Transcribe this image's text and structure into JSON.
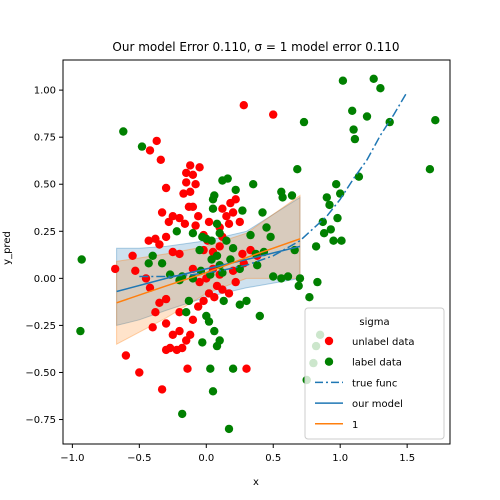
{
  "chart_data": {
    "type": "scatter",
    "title": "Our model Error 0.110, σ = 1 model error 0.110",
    "xlabel": "x",
    "ylabel": "y_pred",
    "xlim": [
      -1.07,
      1.82
    ],
    "ylim": [
      -0.88,
      1.16
    ],
    "xticks": [
      -1.0,
      -0.5,
      0.0,
      0.5,
      1.0,
      1.5
    ],
    "xtick_labels": [
      "−1.0",
      "−0.5",
      "0.0",
      "0.5",
      "1.0",
      "1.5"
    ],
    "yticks": [
      -0.75,
      -0.5,
      -0.25,
      0.0,
      0.25,
      0.5,
      0.75,
      1.0
    ],
    "ytick_labels": [
      "−0.75",
      "−0.50",
      "−0.25",
      "0.00",
      "0.25",
      "0.50",
      "0.75",
      "1.00"
    ],
    "grid": false,
    "legend": {
      "title": "sigma",
      "placement": "lower-right",
      "entries": [
        {
          "label": "unlabel data",
          "kind": "marker",
          "color": "#ff0000"
        },
        {
          "label": "label data",
          "kind": "marker",
          "color": "#008000"
        },
        {
          "label": "true func",
          "kind": "dashdot",
          "color": "#1f77b4"
        },
        {
          "label": "our model",
          "kind": "line",
          "color": "#1f77b4"
        },
        {
          "label": "1",
          "kind": "line",
          "color": "#ff7f0e"
        }
      ]
    },
    "series": [
      {
        "name": "unlabel data",
        "kind": "scatter",
        "color": "#ff0000",
        "points": [
          [
            -0.37,
            0.73
          ],
          [
            -0.42,
            0.68
          ],
          [
            -0.34,
            0.63
          ],
          [
            -0.3,
            0.48
          ],
          [
            -0.25,
            0.33
          ],
          [
            -0.33,
            0.35
          ],
          [
            -0.28,
            0.3
          ],
          [
            -0.38,
            0.21
          ],
          [
            -0.35,
            0.18
          ],
          [
            -0.43,
            0.2
          ],
          [
            -0.3,
            0.22
          ],
          [
            -0.15,
            0.56
          ],
          [
            -0.12,
            0.6
          ],
          [
            -0.1,
            0.55
          ],
          [
            -0.15,
            0.51
          ],
          [
            -0.05,
            0.59
          ],
          [
            -0.08,
            0.5
          ],
          [
            -0.17,
            0.45
          ],
          [
            -0.12,
            0.46
          ],
          [
            -0.13,
            0.38
          ],
          [
            -0.1,
            0.38
          ],
          [
            -0.2,
            0.32
          ],
          [
            -0.06,
            0.33
          ],
          [
            -0.16,
            0.29
          ],
          [
            -0.08,
            0.28
          ],
          [
            -0.02,
            0.23
          ],
          [
            0.02,
            0.3
          ],
          [
            0.01,
            0.2
          ],
          [
            -0.02,
            0.15
          ],
          [
            0.05,
            0.14
          ],
          [
            -0.25,
            0.14
          ],
          [
            -0.2,
            0.13
          ],
          [
            0.1,
            0.17
          ],
          [
            0.12,
            0.22
          ],
          [
            0.1,
            0.27
          ],
          [
            0.15,
            0.33
          ],
          [
            0.17,
            0.29
          ],
          [
            0.12,
            0.37
          ],
          [
            0.2,
            0.35
          ],
          [
            0.18,
            0.4
          ],
          [
            0.22,
            0.42
          ],
          [
            0.25,
            0.3
          ],
          [
            0.28,
            0.92
          ],
          [
            0.5,
            0.87
          ],
          [
            0.27,
            0.13
          ],
          [
            0.28,
            0.08
          ],
          [
            0.33,
            0.15
          ],
          [
            0.38,
            0.12
          ],
          [
            -0.55,
            0.12
          ],
          [
            -0.68,
            0.05
          ],
          [
            -0.53,
            0.04
          ],
          [
            -0.45,
            0.0
          ],
          [
            -0.42,
            -0.05
          ],
          [
            -0.35,
            -0.13
          ],
          [
            -0.3,
            -0.11
          ],
          [
            -0.38,
            -0.18
          ],
          [
            -0.4,
            -0.26
          ],
          [
            -0.3,
            -0.24
          ],
          [
            -0.2,
            -0.18
          ],
          [
            -0.25,
            -0.3
          ],
          [
            -0.2,
            -0.28
          ],
          [
            -0.27,
            -0.37
          ],
          [
            -0.3,
            -0.38
          ],
          [
            -0.22,
            -0.38
          ],
          [
            -0.18,
            -0.37
          ],
          [
            -0.12,
            -0.3
          ],
          [
            -0.15,
            -0.33
          ],
          [
            -0.14,
            -0.48
          ],
          [
            -0.1,
            -0.22
          ],
          [
            -0.06,
            -0.15
          ],
          [
            -0.02,
            -0.12
          ],
          [
            0.02,
            -0.08
          ],
          [
            0.06,
            -0.1
          ],
          [
            0.08,
            -0.04
          ],
          [
            0.1,
            0.02
          ],
          [
            0.05,
            0.05
          ],
          [
            -0.1,
            0.05
          ],
          [
            -0.05,
            -0.02
          ],
          [
            0.12,
            -0.06
          ],
          [
            0.17,
            -0.08
          ],
          [
            0.2,
            0.04
          ],
          [
            0.22,
            -0.02
          ],
          [
            -0.6,
            -0.41
          ],
          [
            -0.5,
            -0.5
          ],
          [
            -0.33,
            -0.59
          ],
          [
            0.3,
            -0.48
          ],
          [
            0.0,
            0.0
          ]
        ]
      },
      {
        "name": "label data",
        "kind": "scatter",
        "color": "#008000",
        "points": [
          [
            -0.93,
            0.1
          ],
          [
            -0.94,
            -0.28
          ],
          [
            -0.62,
            0.78
          ],
          [
            -0.48,
            0.7
          ],
          [
            -0.4,
            0.12
          ],
          [
            -0.33,
            0.08
          ],
          [
            -0.43,
            0.08
          ],
          [
            -0.22,
            0.25
          ],
          [
            -0.18,
            0.01
          ],
          [
            -0.1,
            0.24
          ],
          [
            0.05,
            0.37
          ],
          [
            0.05,
            0.42
          ],
          [
            0.06,
            0.44
          ],
          [
            0.12,
            0.52
          ],
          [
            0.16,
            0.53
          ],
          [
            0.22,
            0.47
          ],
          [
            0.08,
            0.29
          ],
          [
            0.1,
            0.24
          ],
          [
            0.04,
            0.2
          ],
          [
            -0.03,
            0.22
          ],
          [
            0.0,
            0.21
          ],
          [
            0.04,
            0.1
          ],
          [
            0.08,
            0.12
          ],
          [
            0.1,
            0.07
          ],
          [
            0.03,
            0.02
          ],
          [
            -0.04,
            0.04
          ],
          [
            0.12,
            0.03
          ],
          [
            0.18,
            0.1
          ],
          [
            0.25,
            0.05
          ],
          [
            0.33,
            0.23
          ],
          [
            0.37,
            0.13
          ],
          [
            0.38,
            0.07
          ],
          [
            0.42,
            0.35
          ],
          [
            0.43,
            0.14
          ],
          [
            0.48,
            0.22
          ],
          [
            0.56,
            0.46
          ],
          [
            0.57,
            0.43
          ],
          [
            0.64,
            0.44
          ],
          [
            0.68,
            0.58
          ],
          [
            0.56,
            0.0
          ],
          [
            0.61,
            0.01
          ],
          [
            0.66,
            0.15
          ],
          [
            0.69,
            -0.04
          ],
          [
            0.7,
            0.0
          ],
          [
            0.73,
            0.83
          ],
          [
            0.77,
            -0.1
          ],
          [
            0.82,
            0.17
          ],
          [
            0.83,
            -0.02
          ],
          [
            0.87,
            0.3
          ],
          [
            0.88,
            0.24
          ],
          [
            0.9,
            0.43
          ],
          [
            0.92,
            0.39
          ],
          [
            0.93,
            0.26
          ],
          [
            0.95,
            0.2
          ],
          [
            0.97,
            0.5
          ],
          [
            0.98,
            0.32
          ],
          [
            1.0,
            0.45
          ],
          [
            1.01,
            0.2
          ],
          [
            1.02,
            1.05
          ],
          [
            1.09,
            0.89
          ],
          [
            1.1,
            0.79
          ],
          [
            1.11,
            0.74
          ],
          [
            1.14,
            0.54
          ],
          [
            1.2,
            0.86
          ],
          [
            1.25,
            1.06
          ],
          [
            1.3,
            1.01
          ],
          [
            1.37,
            0.83
          ],
          [
            1.67,
            0.58
          ],
          [
            1.71,
            0.84
          ],
          [
            -0.18,
            -0.72
          ],
          [
            0.17,
            -0.8
          ],
          [
            0.2,
            -0.48
          ],
          [
            0.05,
            -0.6
          ],
          [
            0.03,
            -0.48
          ],
          [
            0.0,
            -0.2
          ],
          [
            0.02,
            -0.23
          ],
          [
            0.08,
            -0.36
          ],
          [
            0.1,
            -0.33
          ],
          [
            0.06,
            -0.28
          ],
          [
            -0.03,
            -0.34
          ],
          [
            -0.13,
            -0.12
          ],
          [
            -0.15,
            -0.18
          ],
          [
            -0.27,
            0.02
          ],
          [
            -0.2,
            -0.01
          ],
          [
            -0.1,
            0.0
          ],
          [
            0.13,
            -0.12
          ],
          [
            0.25,
            -0.14
          ],
          [
            0.3,
            -0.12
          ],
          [
            0.4,
            -0.2
          ],
          [
            0.5,
            0.01
          ],
          [
            0.82,
            -0.36
          ],
          [
            0.85,
            -0.3
          ],
          [
            0.8,
            -0.45
          ],
          [
            0.75,
            -0.54
          ],
          [
            0.27,
            0.36
          ],
          [
            0.35,
            0.5
          ],
          [
            0.45,
            0.27
          ],
          [
            -0.05,
            0.15
          ],
          [
            0.15,
            0.2
          ],
          [
            0.2,
            0.16
          ]
        ]
      },
      {
        "name": "true func",
        "kind": "line",
        "style": "dashdot",
        "color": "#1f77b4",
        "points": [
          [
            -0.5,
            0.01
          ],
          [
            -0.3,
            0.01
          ],
          [
            -0.1,
            0.02
          ],
          [
            0.1,
            0.04
          ],
          [
            0.3,
            0.07
          ],
          [
            0.5,
            0.12
          ],
          [
            0.7,
            0.2
          ],
          [
            0.9,
            0.33
          ],
          [
            1.0,
            0.42
          ],
          [
            1.1,
            0.53
          ],
          [
            1.2,
            0.63
          ],
          [
            1.3,
            0.76
          ],
          [
            1.4,
            0.87
          ],
          [
            1.5,
            0.99
          ]
        ]
      },
      {
        "name": "our model",
        "kind": "line",
        "color": "#1f77b4",
        "points": [
          [
            -0.67,
            -0.07
          ],
          [
            -0.3,
            0.0
          ],
          [
            0.0,
            0.05
          ],
          [
            0.3,
            0.1
          ],
          [
            0.7,
            0.17
          ]
        ],
        "band": [
          [
            -0.67,
            -0.25,
            0.16
          ],
          [
            -0.5,
            -0.22,
            0.16
          ],
          [
            -0.3,
            -0.17,
            0.17
          ],
          [
            0.0,
            -0.1,
            0.2
          ],
          [
            0.3,
            -0.05,
            0.25
          ],
          [
            0.7,
            0.0,
            0.43
          ]
        ]
      },
      {
        "name": "1",
        "kind": "line",
        "color": "#ff7f0e",
        "points": [
          [
            -0.67,
            -0.13
          ],
          [
            -0.3,
            -0.04
          ],
          [
            0.0,
            0.03
          ],
          [
            0.3,
            0.11
          ],
          [
            0.7,
            0.21
          ]
        ],
        "band": [
          [
            -0.67,
            -0.35,
            0.09
          ],
          [
            -0.3,
            -0.21,
            0.13
          ],
          [
            0.0,
            -0.08,
            0.17
          ],
          [
            0.3,
            0.0,
            0.24
          ],
          [
            0.7,
            0.0,
            0.44
          ]
        ]
      }
    ]
  }
}
